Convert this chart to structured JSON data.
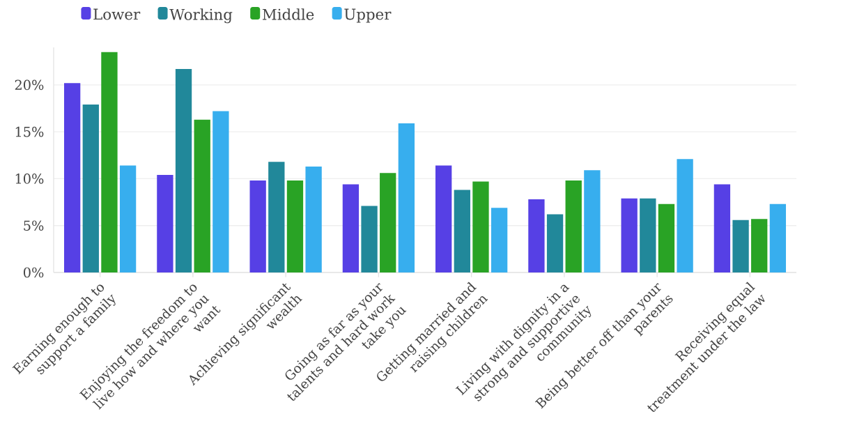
{
  "chart_data": {
    "type": "bar",
    "categories": [
      "Earning enough to\nsupport a family",
      "Enjoying the freedom to\nlive how and where you\nwant",
      "Achieving significant\nwealth",
      "Going as far as your\ntalents and hard work\ntake you",
      "Getting married and\nraising children",
      "Living with dignity in a\nstrong and supportive\ncommunity",
      "Being better off than your\nparents",
      "Receiving equal\ntreatment under the law"
    ],
    "series": [
      {
        "name": "Lower",
        "color": "#5640e5",
        "values": [
          20.2,
          10.4,
          9.8,
          9.4,
          11.4,
          7.8,
          7.9,
          9.4
        ]
      },
      {
        "name": "Working",
        "color": "#21889a",
        "values": [
          17.9,
          21.7,
          11.8,
          7.1,
          8.8,
          6.2,
          7.9,
          5.6
        ]
      },
      {
        "name": "Middle",
        "color": "#29a325",
        "values": [
          23.5,
          16.3,
          9.8,
          10.6,
          9.7,
          9.8,
          7.3,
          5.7
        ]
      },
      {
        "name": "Upper",
        "color": "#37aeee",
        "values": [
          11.4,
          17.2,
          11.3,
          15.9,
          6.9,
          10.9,
          12.1,
          7.3
        ]
      }
    ],
    "ylim": [
      0,
      24
    ],
    "yticks": [
      {
        "value": 0,
        "label": "0%"
      },
      {
        "value": 5,
        "label": "5%"
      },
      {
        "value": 10,
        "label": "10%"
      },
      {
        "value": 15,
        "label": "15%"
      },
      {
        "value": 20,
        "label": "20%"
      }
    ],
    "grid": "y",
    "legend": "top left"
  }
}
